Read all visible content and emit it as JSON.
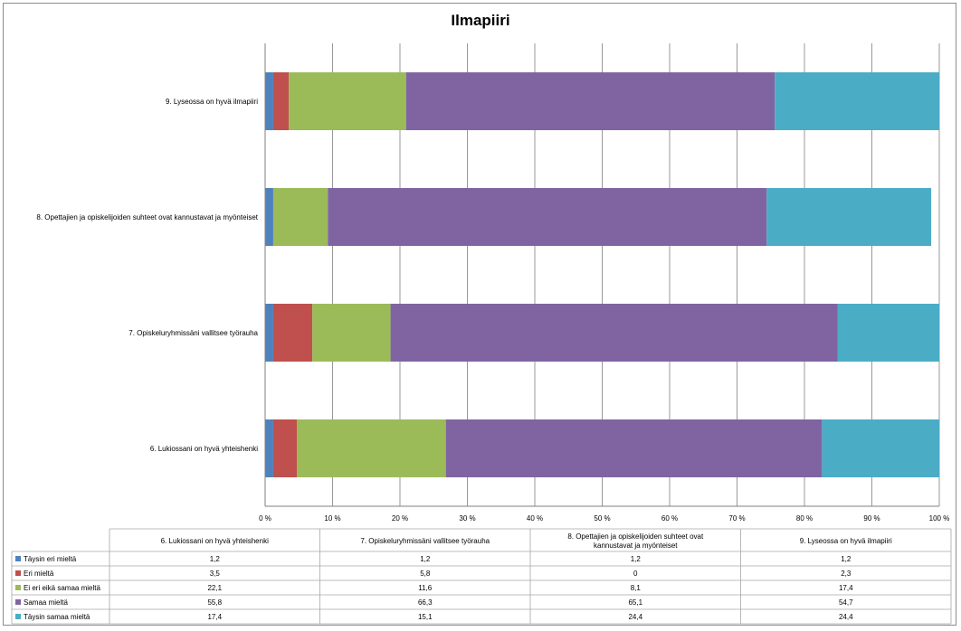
{
  "chart_data": {
    "type": "bar",
    "orientation": "horizontal",
    "stacked": "percent",
    "title": "Ilmapiiri",
    "categories": [
      "6. Lukiossani on hyvä yhteishenki",
      "7. Opiskeluryhmissäni vallitsee työrauha",
      "8. Opettajien ja opiskelijoiden suhteet ovat kannustavat ja myönteiset",
      "9. Lyseossa on hyvä ilmapiiri"
    ],
    "table_headers": [
      "6. Lukiossani on hyvä yhteishenki",
      "7. Opiskeluryhmissäni vallitsee työrauha",
      "8. Opettajien ja opiskelijoiden suhteet ovat kannustavat ja myönteiset",
      "9. Lyseossa on hyvä ilmapiiri"
    ],
    "series": [
      {
        "name": "Täysin eri mieltä",
        "color": "#4F81BD",
        "values": [
          1.2,
          1.2,
          1.2,
          1.2
        ],
        "labels": [
          "1,2",
          "1,2",
          "1,2",
          "1,2"
        ]
      },
      {
        "name": "Eri mieltä",
        "color": "#C0504D",
        "values": [
          3.5,
          5.8,
          0,
          2.3
        ],
        "labels": [
          "3,5",
          "5,8",
          "0",
          "2,3"
        ]
      },
      {
        "name": "Ei eri eikä samaa mieltä",
        "color": "#9BBB59",
        "values": [
          22.1,
          11.6,
          8.1,
          17.4
        ],
        "labels": [
          "22,1",
          "11,6",
          "8,1",
          "17,4"
        ]
      },
      {
        "name": "Samaa mieltä",
        "color": "#8064A2",
        "values": [
          55.8,
          66.3,
          65.1,
          54.7
        ],
        "labels": [
          "55,8",
          "66,3",
          "65,1",
          "54,7"
        ]
      },
      {
        "name": "Täysin samaa mieltä",
        "color": "#4BACC6",
        "values": [
          17.4,
          15.1,
          24.4,
          24.4
        ],
        "labels": [
          "17,4",
          "15,1",
          "24,4",
          "24,4"
        ]
      }
    ],
    "xlim": [
      0,
      100
    ],
    "x_ticks": [
      "0 %",
      "10 %",
      "20 %",
      "30 %",
      "40 %",
      "50 %",
      "60 %",
      "70 %",
      "80 %",
      "90 %",
      "100 %"
    ],
    "grid": true,
    "legend": "data-table"
  }
}
